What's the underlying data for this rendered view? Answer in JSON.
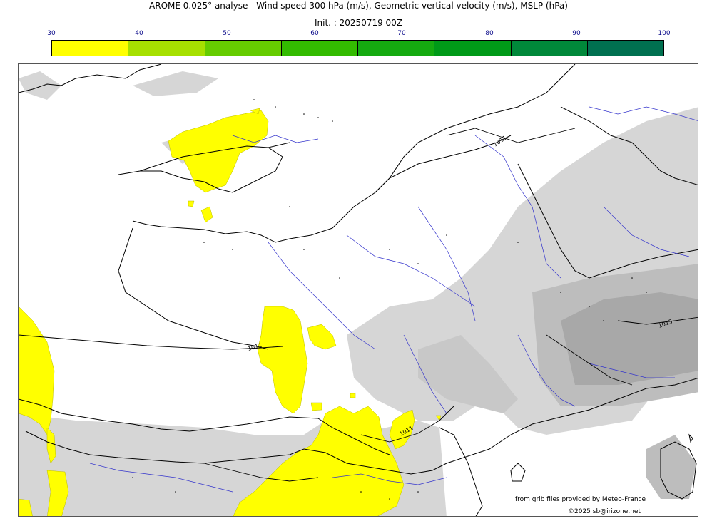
{
  "header": {
    "title": "AROME 0.025° analyse - Wind speed 300 hPa (m/s), Geometric vertical velocity (m/s), MSLP (hPa)",
    "init": "Init. : 20250719 00Z"
  },
  "colorbar": {
    "ticks": [
      "30",
      "40",
      "50",
      "60",
      "70",
      "80",
      "90",
      "100"
    ],
    "colors": [
      "#ffff00",
      "#a6e000",
      "#66cc00",
      "#33bb00",
      "#15aa10",
      "#009a18",
      "#00883a",
      "#007050"
    ]
  },
  "map": {
    "isobar_labels": [
      "1011",
      "1011",
      "1011",
      "1015"
    ],
    "colors": {
      "jet": "#ffff00",
      "vertical_velocity": "#d4d4d4",
      "coastline": "#000000",
      "rivers": "#3333cc",
      "isobars": "#000000"
    }
  },
  "footer": {
    "credit": "from grib files provided by Meteo-France",
    "copyright": "©2025 sb@irizone.net"
  }
}
